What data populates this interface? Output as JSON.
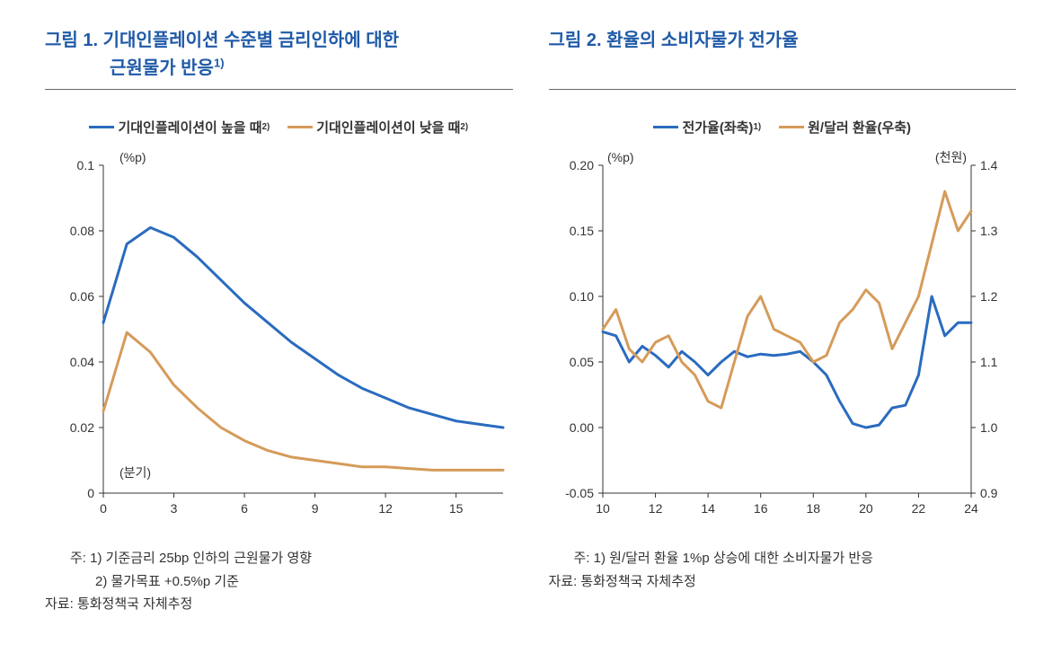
{
  "colors": {
    "title": "#1f5aa8",
    "series_blue": "#2a6bbf",
    "series_orange": "#d59b5a",
    "axis": "#333333",
    "bg": "#ffffff"
  },
  "figure1": {
    "title_main": "그림 1. 기대인플레이션 수준별 금리인하에 대한",
    "title_sub": "근원물가 반응",
    "title_sup": "1)",
    "legend": [
      {
        "label": "기대인플레이션이 높을 때",
        "sup": "2)",
        "color": "#2a6bbf"
      },
      {
        "label": "기대인플레이션이 낮을 때",
        "sup": "2)",
        "color": "#d59b5a"
      }
    ],
    "y_unit": "(%p)",
    "x_unit": "(분기)",
    "chart": {
      "type": "line",
      "x_range": [
        0,
        17
      ],
      "y_range": [
        0,
        0.1
      ],
      "x_ticks": [
        0,
        3,
        6,
        9,
        12,
        15
      ],
      "y_ticks": [
        0,
        0.02,
        0.04,
        0.06,
        0.08,
        0.1
      ],
      "y_tick_labels": [
        "0",
        "0.02",
        "0.04",
        "0.06",
        "0.08",
        "0.1"
      ],
      "line_width": 3,
      "series": [
        {
          "name": "high",
          "color": "#2a6bbf",
          "x": [
            0,
            1,
            2,
            3,
            4,
            5,
            6,
            7,
            8,
            9,
            10,
            11,
            12,
            13,
            14,
            15,
            16,
            17
          ],
          "y": [
            0.052,
            0.076,
            0.081,
            0.078,
            0.072,
            0.065,
            0.058,
            0.052,
            0.046,
            0.041,
            0.036,
            0.032,
            0.029,
            0.026,
            0.024,
            0.022,
            0.021,
            0.02
          ]
        },
        {
          "name": "low",
          "color": "#d59b5a",
          "x": [
            0,
            1,
            2,
            3,
            4,
            5,
            6,
            7,
            8,
            9,
            10,
            11,
            12,
            13,
            14,
            15,
            16,
            17
          ],
          "y": [
            0.025,
            0.049,
            0.043,
            0.033,
            0.026,
            0.02,
            0.016,
            0.013,
            0.011,
            0.01,
            0.009,
            0.008,
            0.008,
            0.0075,
            0.007,
            0.007,
            0.007,
            0.007
          ]
        }
      ]
    },
    "notes": {
      "line1": "주: 1) 기준금리 25bp 인하의 근원물가 영향",
      "line2": "2) 물가목표 +0.5%p 기준",
      "source": "자료: 통화정책국 자체추정"
    }
  },
  "figure2": {
    "title_main": "그림 2. 환율의 소비자물가 전가율",
    "legend": [
      {
        "label": "전가율(좌축)",
        "sup": "1)",
        "color": "#2a6bbf"
      },
      {
        "label": "원/달러 환율(우축)",
        "sup": "",
        "color": "#d59b5a"
      }
    ],
    "y_unit_left": "(%p)",
    "y_unit_right": "(천원)",
    "chart": {
      "type": "line-dual",
      "x_range": [
        10,
        24
      ],
      "y_left_range": [
        -0.05,
        0.2
      ],
      "y_right_range": [
        0.9,
        1.4
      ],
      "x_ticks": [
        10,
        12,
        14,
        16,
        18,
        20,
        22,
        24
      ],
      "y_left_ticks": [
        -0.05,
        0.0,
        0.05,
        0.1,
        0.15,
        0.2
      ],
      "y_left_labels": [
        "-0.05",
        "0.00",
        "0.05",
        "0.10",
        "0.15",
        "0.20"
      ],
      "y_right_ticks": [
        0.9,
        1.0,
        1.1,
        1.2,
        1.3,
        1.4
      ],
      "y_right_labels": [
        "0.9",
        "1.0",
        "1.1",
        "1.2",
        "1.3",
        "1.4"
      ],
      "line_width": 3,
      "series": [
        {
          "name": "passthrough",
          "axis": "left",
          "color": "#2a6bbf",
          "x": [
            10,
            10.5,
            11,
            11.5,
            12,
            12.5,
            13,
            13.5,
            14,
            14.5,
            15,
            15.5,
            16,
            16.5,
            17,
            17.5,
            18,
            18.5,
            19,
            19.5,
            20,
            20.5,
            21,
            21.5,
            22,
            22.5,
            23,
            23.5,
            24
          ],
          "y": [
            0.073,
            0.07,
            0.05,
            0.062,
            0.055,
            0.046,
            0.058,
            0.05,
            0.04,
            0.05,
            0.058,
            0.054,
            0.056,
            0.055,
            0.056,
            0.058,
            0.05,
            0.04,
            0.02,
            0.003,
            0.0,
            0.002,
            0.015,
            0.017,
            0.04,
            0.1,
            0.07,
            0.08,
            0.08
          ]
        },
        {
          "name": "fx",
          "axis": "right",
          "color": "#d59b5a",
          "x": [
            10,
            10.5,
            11,
            11.5,
            12,
            12.5,
            13,
            13.5,
            14,
            14.5,
            15,
            15.5,
            16,
            16.5,
            17,
            17.5,
            18,
            18.5,
            19,
            19.5,
            20,
            20.5,
            21,
            21.5,
            22,
            22.5,
            23,
            23.5,
            24
          ],
          "y": [
            1.15,
            1.18,
            1.12,
            1.1,
            1.13,
            1.14,
            1.1,
            1.08,
            1.04,
            1.03,
            1.1,
            1.17,
            1.2,
            1.15,
            1.14,
            1.13,
            1.1,
            1.11,
            1.16,
            1.18,
            1.21,
            1.19,
            1.12,
            1.16,
            1.2,
            1.28,
            1.36,
            1.3,
            1.33
          ]
        }
      ]
    },
    "notes": {
      "line1": "주: 1) 원/달러 환율 1%p 상승에 대한 소비자물가 반응",
      "source": "자료: 통화정책국 자체추정"
    }
  }
}
